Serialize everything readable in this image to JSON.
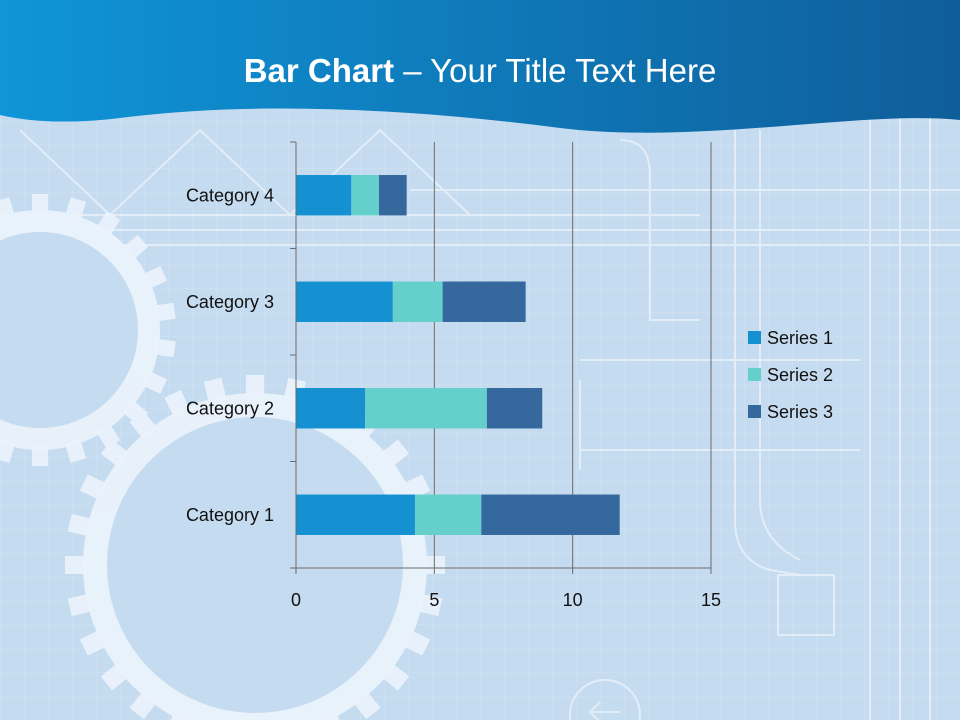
{
  "slide": {
    "title_bold": "Bar Chart",
    "title_rest": " – Your Title Text Here",
    "header_color": "#1479bd",
    "background_color": "#c7dcef"
  },
  "chart_data": {
    "type": "bar",
    "orientation": "horizontal",
    "stacked": true,
    "categories": [
      "Category 1",
      "Category 2",
      "Category 3",
      "Category 4"
    ],
    "series": [
      {
        "name": "Series 1",
        "values": [
          4.3,
          2.5,
          3.5,
          2.0
        ],
        "color": "#1591d2"
      },
      {
        "name": "Series 2",
        "values": [
          2.4,
          4.4,
          1.8,
          1.0
        ],
        "color": "#65cfcc"
      },
      {
        "name": "Series 3",
        "values": [
          5.0,
          2.0,
          3.0,
          1.0
        ],
        "color": "#35689c"
      }
    ],
    "xlim": [
      0,
      15
    ],
    "xticks": [
      "0",
      "5",
      "10",
      "15"
    ],
    "grid": true,
    "legend": "right"
  }
}
